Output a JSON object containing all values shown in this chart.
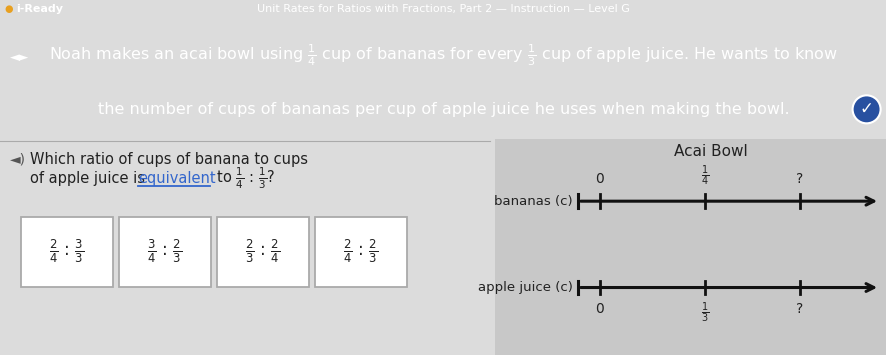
{
  "header_bg": "#4169b8",
  "body_bg_color": "#dcdcdc",
  "right_panel_bg": "#c8c8c8",
  "line_color": "#111111",
  "iready_logo": "i-Ready",
  "header_title": "Unit Rates for Ratios with Fractions, Part 2 — Instruction — Level G",
  "header_line1": "Noah makes an acai bowl using $\\frac{1}{4}$ cup of bananas for every $\\frac{1}{3}$ cup of apple juice. He wants to know",
  "header_line2": "the number of cups of bananas per cup of apple juice he uses when making the bowl.",
  "question_text1": "Which ratio of cups of banana to cups",
  "question_text2": "of apple juice is ",
  "question_equiv": "equivalent",
  "question_to": " to $\\frac{1}{4}$ : $\\frac{1}{3}$?",
  "choices": [
    {
      "num1": "2",
      "den1": "4",
      "num2": "3",
      "den2": "3"
    },
    {
      "num1": "3",
      "den1": "4",
      "num2": "2",
      "den2": "3"
    },
    {
      "num1": "2",
      "den1": "3",
      "num2": "2",
      "den2": "4"
    },
    {
      "num1": "2",
      "den1": "4",
      "num2": "2",
      "den2": "3"
    }
  ],
  "acai_bowl_title": "Acai Bowl",
  "banana_label": "bananas (c)",
  "apple_label": "apple juice (c)",
  "check_bg": "#2850a0"
}
